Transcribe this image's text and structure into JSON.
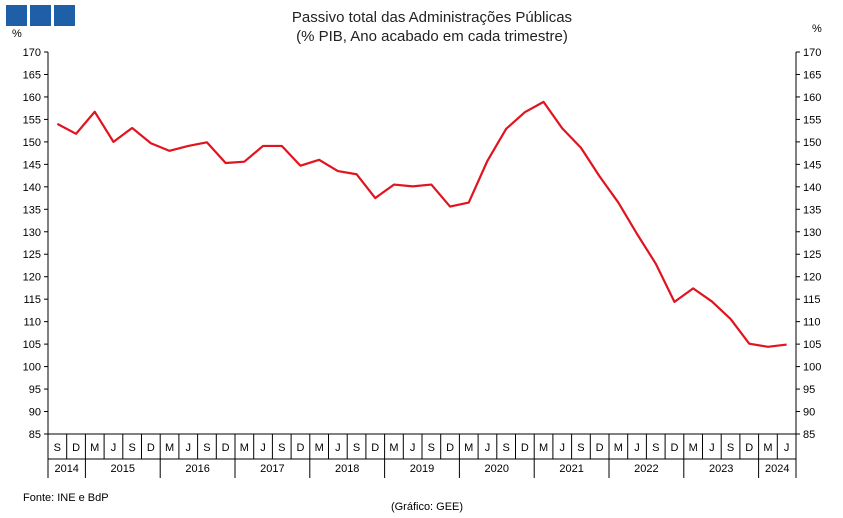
{
  "chart_data": {
    "type": "line",
    "title": "Passivo total das Administrações Públicas",
    "subtitle": "(% PIB, Ano acabado em cada trimestre)",
    "ylabel_left": "%",
    "ylabel_right": "%",
    "ylim": [
      85,
      170
    ],
    "yticks": [
      85,
      90,
      95,
      100,
      105,
      110,
      115,
      120,
      125,
      130,
      135,
      140,
      145,
      150,
      155,
      160,
      165,
      170
    ],
    "grid": false,
    "categories": [
      "S",
      "D",
      "M",
      "J",
      "S",
      "D",
      "M",
      "J",
      "S",
      "D",
      "M",
      "J",
      "S",
      "D",
      "M",
      "J",
      "S",
      "D",
      "M",
      "J",
      "S",
      "D",
      "M",
      "J",
      "S",
      "D",
      "M",
      "J",
      "S",
      "D",
      "M",
      "J",
      "S",
      "D",
      "M",
      "J",
      "S",
      "D",
      "M",
      "J"
    ],
    "years": [
      {
        "label": "2014",
        "start": 0,
        "end": 1
      },
      {
        "label": "2015",
        "start": 2,
        "end": 5
      },
      {
        "label": "2016",
        "start": 6,
        "end": 9
      },
      {
        "label": "2017",
        "start": 10,
        "end": 13
      },
      {
        "label": "2018",
        "start": 14,
        "end": 17
      },
      {
        "label": "2019",
        "start": 18,
        "end": 21
      },
      {
        "label": "2020",
        "start": 22,
        "end": 25
      },
      {
        "label": "2021",
        "start": 26,
        "end": 29
      },
      {
        "label": "2022",
        "start": 30,
        "end": 33
      },
      {
        "label": "2023",
        "start": 34,
        "end": 37
      },
      {
        "label": "2024",
        "start": 38,
        "end": 39
      }
    ],
    "series": [
      {
        "color": "#e0141e",
        "values": [
          154.0,
          151.8,
          156.7,
          150.0,
          153.1,
          149.7,
          148.0,
          149.1,
          149.9,
          145.3,
          145.6,
          149.1,
          149.1,
          144.7,
          146.0,
          143.5,
          142.8,
          137.5,
          140.5,
          140.1,
          140.5,
          135.6,
          136.5,
          145.8,
          152.9,
          156.6,
          158.9,
          153.0,
          148.7,
          142.3,
          136.5,
          129.5,
          122.9,
          114.4,
          117.4,
          114.5,
          110.6,
          105.1,
          104.4,
          104.9
        ]
      }
    ]
  },
  "footer": {
    "source": "Fonte: INE e BdP",
    "credit": "(Gráfico: GEE)"
  }
}
